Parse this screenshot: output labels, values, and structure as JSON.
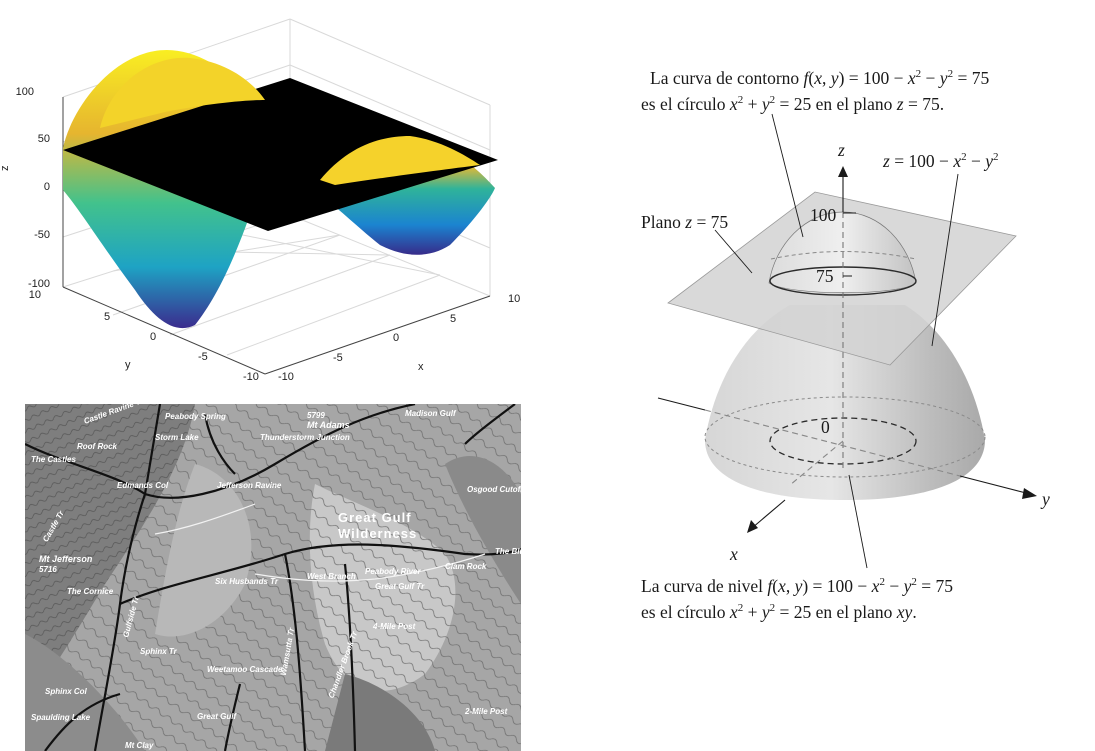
{
  "surface_plot": {
    "z_label": "z",
    "x_label": "x",
    "y_label": "y",
    "z_ticks": [
      "100",
      "50",
      "0",
      "-50",
      "-100"
    ],
    "y_ticks": [
      "10",
      "5",
      "0",
      "-5",
      "-10"
    ],
    "x_ticks": [
      "-10",
      "-5",
      "0",
      "5",
      "10"
    ],
    "colors": {
      "plane": "#000000",
      "surface_high": "#f9f021",
      "surface_mid": "#21b5a6",
      "surface_low": "#3a2c8f"
    }
  },
  "topo_map": {
    "labels": {
      "mt_adams": "Mt Adams",
      "adams_elev": "5799",
      "madison_gulf": "Madison Gulf",
      "thunderstorm": "Thunderstorm Junction",
      "peabody_spring": "Peabody Spring",
      "storm_lake": "Storm Lake",
      "great_gulf": "Great Gulf",
      "wilderness": "Wilderness",
      "jefferson_ravine": "Jefferson Ravine",
      "edmands_col": "Edmands Col",
      "mt_jefferson": "Mt Jefferson",
      "jefferson_elev": "5716",
      "six_husbands": "Six Husbands Tr",
      "west_branch": "West Branch",
      "peabody_river": "Peabody River",
      "great_gulf_tr": "Great Gulf Tr",
      "clam_rock": "Clam Rock",
      "osgood_cutoff": "Osgood Cutoff",
      "the_bluff": "The Bluff",
      "four_mile_post": "4-Mile Post",
      "two_mile_post": "2-Mile Post",
      "sphinx_col": "Sphinx Col",
      "sphinx_tr": "Sphinx Tr",
      "wamsutta": "Wamsutta Tr",
      "chandler_brook": "Chandler Brook Tr",
      "gulfside": "Gulfside Tr",
      "the_cornice": "The Cornice",
      "castle_ravine": "Castle Ravine Tr",
      "roof_rock": "Roof Rock",
      "the_castles": "The Castles",
      "castle_trail": "Castle Tr",
      "mt_clay": "Mt Clay",
      "weetamoo": "Weetamoo Cascade",
      "great_gulf_small": "Great Gulf",
      "spaulding": "Spaulding Lake",
      "edmands_col_tr": "Edmands Col"
    }
  },
  "paraboloid": {
    "contour_caption_line1_a": "La curva de contorno ",
    "contour_caption_line1_b": "f",
    "contour_caption_line1_c": "(",
    "contour_caption_line1_d": "x",
    "contour_caption_line1_e": ", ",
    "contour_caption_line1_f": "y",
    "contour_caption_line1_g": ") = 100 − ",
    "contour_caption_line1_h": "x",
    "contour_caption_line1_i": "2",
    "contour_caption_line1_j": " − ",
    "contour_caption_line1_k": "y",
    "contour_caption_line1_l": "2",
    "contour_caption_line1_m": " = 75",
    "contour_caption_line2_a": "es el círculo ",
    "contour_caption_line2_b": "x",
    "contour_caption_line2_c": "2",
    "contour_caption_line2_d": " + ",
    "contour_caption_line2_e": "y",
    "contour_caption_line2_f": "2",
    "contour_caption_line2_g": " = 25 en el plano ",
    "contour_caption_line2_h": "z",
    "contour_caption_line2_i": " = 75.",
    "eq_label_a": "z",
    "eq_label_b": " = 100 − ",
    "eq_label_c": "x",
    "eq_label_d": "2",
    "eq_label_e": " − ",
    "eq_label_f": "y",
    "eq_label_g": "2",
    "plane_label_a": "Plano ",
    "plane_label_b": "z",
    "plane_label_c": " = 75",
    "axis_z": "z",
    "axis_x": "x",
    "axis_y": "y",
    "tick_100": "100",
    "tick_75": "75",
    "tick_0": "0",
    "level_caption_line1_a": "La curva de nivel ",
    "level_caption_line1_b": "f",
    "level_caption_line1_c": "(",
    "level_caption_line1_d": "x",
    "level_caption_line1_e": ", ",
    "level_caption_line1_f": "y",
    "level_caption_line1_g": ") = 100 − ",
    "level_caption_line1_h": "x",
    "level_caption_line1_i": "2",
    "level_caption_line1_j": " − ",
    "level_caption_line1_k": "y",
    "level_caption_line1_l": "2",
    "level_caption_line1_m": " = 75",
    "level_caption_line2_a": "es el círculo ",
    "level_caption_line2_b": "x",
    "level_caption_line2_c": "2",
    "level_caption_line2_d": " + ",
    "level_caption_line2_e": "y",
    "level_caption_line2_f": "2",
    "level_caption_line2_g": " = 25 en el plano ",
    "level_caption_line2_h": "xy",
    "level_caption_line2_i": "."
  }
}
